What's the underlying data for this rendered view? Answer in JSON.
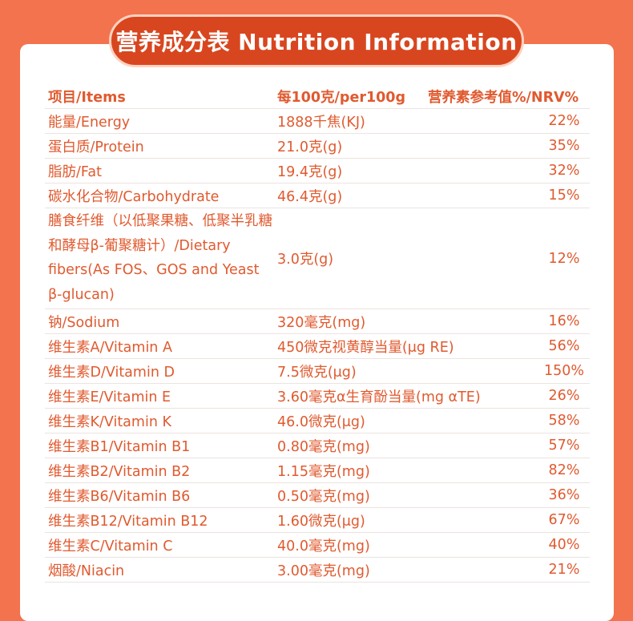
{
  "title": "营养成分表 Nutrition Information",
  "header": {
    "item": "项目/Items",
    "per100g": "每100克/per100g",
    "nrv": "营养素参考值%/NRV%"
  },
  "rows": [
    {
      "item": "能量/Energy",
      "amount": "1888千焦(KJ)",
      "nrv": "22%"
    },
    {
      "item": "蛋白质/Protein",
      "amount": "21.0克(g)",
      "nrv": "35%"
    },
    {
      "item": "脂肪/Fat",
      "amount": "19.4克(g)",
      "nrv": "32%"
    },
    {
      "item": "碳水化合物/Carbohydrate",
      "amount": "46.4克(g)",
      "nrv": "15%"
    },
    {
      "item": "膳食纤维（以低聚果糖、低聚半乳糖和酵母β-葡聚糖计）/Dietary fibers(As FOS、GOS and Yeast β-glucan)",
      "amount": "3.0克(g)",
      "nrv": "12%"
    },
    {
      "item": "钠/Sodium",
      "amount": "320毫克(mg)",
      "nrv": "16%"
    },
    {
      "item": "维生素A/Vitamin A",
      "amount": "450微克视黄醇当量(μg RE)",
      "nrv": "56%"
    },
    {
      "item": "维生素D/Vitamin D",
      "amount": "7.5微克(μg)",
      "nrv": "150%"
    },
    {
      "item": "维生素E/Vitamin E",
      "amount": "3.60毫克α生育酚当量(mg αTE)",
      "nrv": "26%"
    },
    {
      "item": "维生素K/Vitamin K",
      "amount": "46.0微克(μg)",
      "nrv": "58%"
    },
    {
      "item": "维生素B1/Vitamin B1",
      "amount": "0.80毫克(mg)",
      "nrv": "57%"
    },
    {
      "item": "维生素B2/Vitamin B2",
      "amount": "1.15毫克(mg)",
      "nrv": "82%"
    },
    {
      "item": "维生素B6/Vitamin B6",
      "amount": "0.50毫克(mg)",
      "nrv": "36%"
    },
    {
      "item": "维生素B12/Vitamin B12",
      "amount": "1.60微克(μg)",
      "nrv": "67%"
    },
    {
      "item": "维生素C/Vitamin C",
      "amount": "40.0毫克(mg)",
      "nrv": "40%"
    },
    {
      "item": "烟酸/Niacin",
      "amount": "3.00毫克(mg)",
      "nrv": "21%"
    }
  ]
}
